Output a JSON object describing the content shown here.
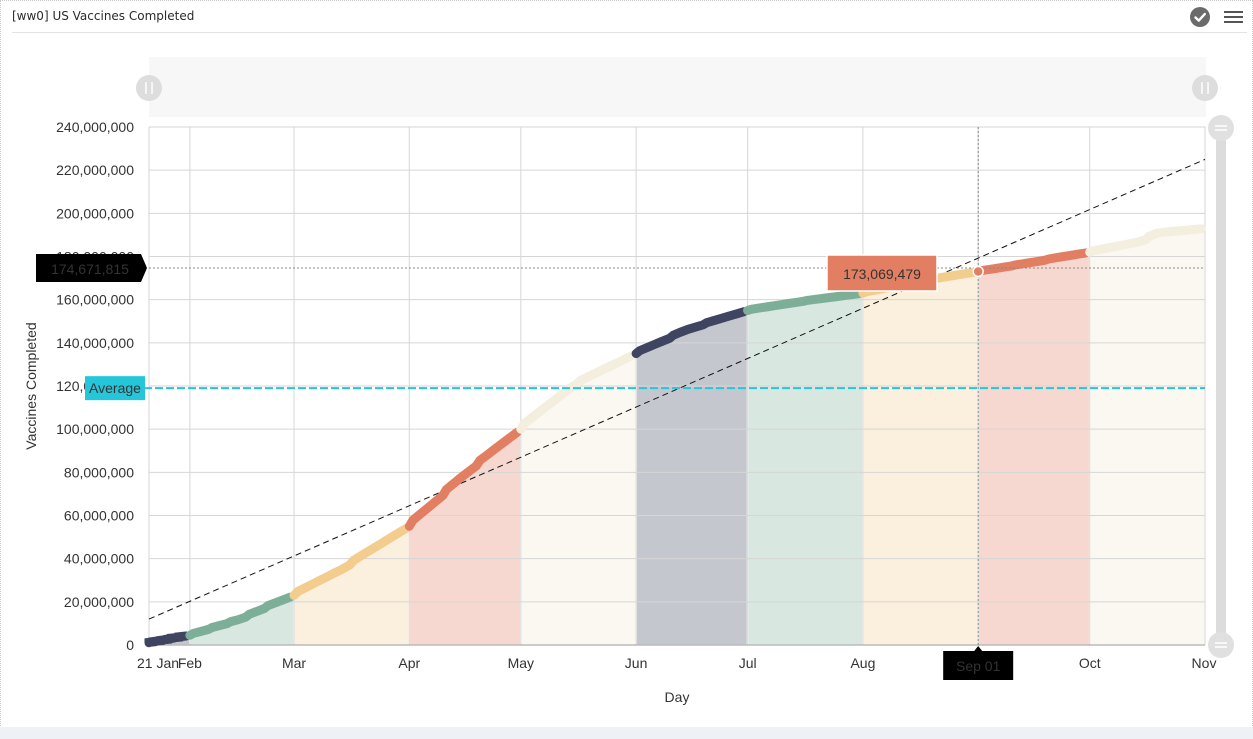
{
  "header": {
    "title": "[ww0] US Vaccines Completed",
    "icons": [
      "check-circle-icon",
      "menu-icon"
    ]
  },
  "colors": {
    "navy": "#3f4560",
    "green": "#7daf98",
    "sand": "#f2cd8e",
    "coral": "#e27e62",
    "cream": "#f3eedd",
    "average": "#26c6da",
    "tooltip": "#e27e62",
    "crosshair_label": "#000000"
  },
  "chart_data": {
    "type": "area",
    "title": "",
    "xlabel": "Day",
    "ylabel": "Vaccines Completed",
    "ylim": [
      0,
      240000000
    ],
    "xlim": [
      "2021-01-21",
      "2021-11-01"
    ],
    "y_ticks": [
      "0",
      "20,000,000",
      "40,000,000",
      "60,000,000",
      "80,000,000",
      "100,000,000",
      "120,000,000",
      "140,000,000",
      "160,000,000",
      "180,000,000",
      "200,000,000",
      "220,000,000",
      "240,000,000"
    ],
    "x_ticks": [
      {
        "date": "2021-01-21",
        "label": "21 Jan"
      },
      {
        "date": "2021-02-01",
        "label": "Feb"
      },
      {
        "date": "2021-03-01",
        "label": "Mar"
      },
      {
        "date": "2021-04-01",
        "label": "Apr"
      },
      {
        "date": "2021-05-01",
        "label": "May"
      },
      {
        "date": "2021-06-01",
        "label": "Jun"
      },
      {
        "date": "2021-07-01",
        "label": "Jul"
      },
      {
        "date": "2021-08-01",
        "label": "Aug"
      },
      {
        "date": "2021-09-01",
        "label": "Sep"
      },
      {
        "date": "2021-10-01",
        "label": "Oct"
      },
      {
        "date": "2021-11-01",
        "label": "Nov"
      }
    ],
    "grid": true,
    "series": [
      {
        "name": "",
        "monthly_colors": [
          "navy",
          "green",
          "sand",
          "coral",
          "cream",
          "navy",
          "green",
          "sand",
          "coral",
          "cream",
          "navy"
        ],
        "points": [
          [
            "2021-01-21",
            1000000
          ],
          [
            "2021-02-01",
            4500000
          ],
          [
            "2021-02-15",
            12000000
          ],
          [
            "2021-03-01",
            23000000
          ],
          [
            "2021-03-15",
            36000000
          ],
          [
            "2021-04-01",
            55000000
          ],
          [
            "2021-04-15",
            77000000
          ],
          [
            "2021-05-01",
            100000000
          ],
          [
            "2021-05-15",
            120000000
          ],
          [
            "2021-06-01",
            135000000
          ],
          [
            "2021-06-15",
            146000000
          ],
          [
            "2021-07-01",
            155000000
          ],
          [
            "2021-07-15",
            159000000
          ],
          [
            "2021-08-01",
            163000000
          ],
          [
            "2021-08-15",
            168000000
          ],
          [
            "2021-09-01",
            173000000
          ],
          [
            "2021-09-15",
            177000000
          ],
          [
            "2021-10-01",
            182000000
          ],
          [
            "2021-10-15",
            187000000
          ],
          [
            "2021-10-20",
            191000000
          ],
          [
            "2021-11-01",
            193000000
          ]
        ]
      },
      {
        "name": "",
        "style": "trend-dashed",
        "points": [
          [
            "2021-01-21",
            12000000
          ],
          [
            "2021-11-01",
            225000000
          ]
        ]
      }
    ],
    "average": {
      "label": "Average",
      "value": 119000000
    },
    "tooltip": {
      "value": "173,069,479",
      "date": "2021-09-01",
      "y": 173069479
    },
    "crosshair": {
      "y_label": "174,671,815",
      "y": 174671815,
      "x_label": "Sep 01",
      "date": "2021-09-01"
    }
  }
}
